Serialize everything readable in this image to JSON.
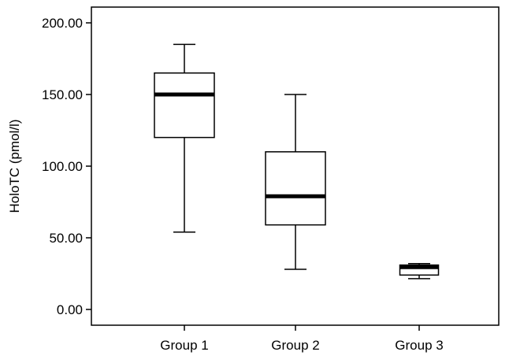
{
  "chart_data": {
    "type": "box",
    "title": "",
    "xlabel": "",
    "ylabel": "HoloTC (pmol/l)",
    "ylim": [
      -11,
      211
    ],
    "yticks": [
      0,
      50,
      100,
      150,
      200
    ],
    "ytick_labels": [
      "0.00",
      "50.00",
      "100.00",
      "150.00",
      "200.00"
    ],
    "grid": false,
    "categories": [
      "Group 1",
      "Group 2",
      "Group 3"
    ],
    "series": [
      {
        "name": "Group 1",
        "min": 54,
        "q1": 120,
        "median": 150,
        "q3": 165,
        "max": 185
      },
      {
        "name": "Group 2",
        "min": 28,
        "q1": 59,
        "median": 79,
        "q3": 110,
        "max": 150
      },
      {
        "name": "Group 3",
        "min": 21.5,
        "q1": 24,
        "median": 29.5,
        "q3": 31,
        "max": 32
      }
    ]
  }
}
